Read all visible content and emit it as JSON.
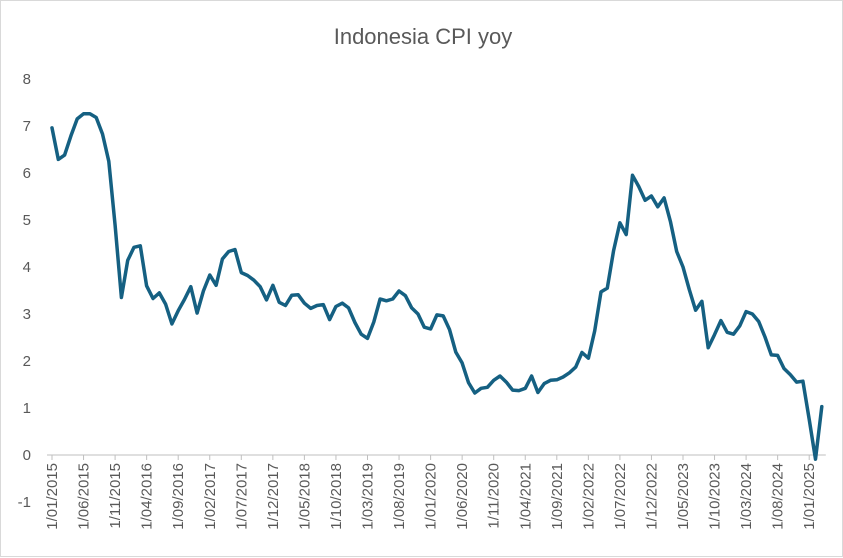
{
  "chart_data": {
    "type": "line",
    "title": "Indonesia CPI yoy",
    "xlabel": "",
    "ylabel": "",
    "ylim": [
      -1,
      8
    ],
    "yticks": [
      "-1",
      "0",
      "1",
      "2",
      "3",
      "4",
      "5",
      "6",
      "7",
      "8"
    ],
    "grid": false,
    "legend": "none",
    "color": "#156082",
    "x_tick_labels": [
      "1/01/2015",
      "1/06/2015",
      "1/11/2015",
      "1/04/2016",
      "1/09/2016",
      "1/02/2017",
      "1/07/2017",
      "1/12/2017",
      "1/05/2018",
      "1/10/2018",
      "1/03/2019",
      "1/08/2019",
      "1/01/2020",
      "1/06/2020",
      "1/11/2020",
      "1/04/2021",
      "1/09/2021",
      "1/02/2022",
      "1/07/2022",
      "1/12/2022",
      "1/05/2023",
      "1/10/2023",
      "1/03/2024",
      "1/08/2024",
      "1/01/2025"
    ],
    "series": [
      {
        "name": "Indonesia CPI yoy",
        "start": "1/01/2015",
        "frequency": "monthly",
        "values": [
          6.96,
          6.29,
          6.38,
          6.79,
          7.15,
          7.26,
          7.26,
          7.18,
          6.83,
          6.25,
          4.89,
          3.35,
          4.14,
          4.42,
          4.45,
          3.6,
          3.33,
          3.45,
          3.21,
          2.79,
          3.07,
          3.31,
          3.58,
          3.02,
          3.49,
          3.83,
          3.61,
          4.17,
          4.33,
          4.37,
          3.88,
          3.82,
          3.72,
          3.58,
          3.3,
          3.61,
          3.25,
          3.18,
          3.4,
          3.41,
          3.23,
          3.12,
          3.18,
          3.2,
          2.88,
          3.16,
          3.23,
          3.13,
          2.82,
          2.57,
          2.48,
          2.83,
          3.32,
          3.28,
          3.32,
          3.49,
          3.39,
          3.13,
          3.0,
          2.72,
          2.68,
          2.98,
          2.96,
          2.67,
          2.19,
          1.96,
          1.54,
          1.32,
          1.42,
          1.44,
          1.59,
          1.68,
          1.55,
          1.38,
          1.37,
          1.42,
          1.68,
          1.33,
          1.52,
          1.59,
          1.6,
          1.66,
          1.75,
          1.87,
          2.18,
          2.06,
          2.64,
          3.47,
          3.55,
          4.35,
          4.94,
          4.69,
          5.95,
          5.71,
          5.42,
          5.51,
          5.28,
          5.47,
          4.97,
          4.33,
          4.0,
          3.52,
          3.08,
          3.27,
          2.28,
          2.56,
          2.86,
          2.61,
          2.57,
          2.75,
          3.05,
          3.0,
          2.84,
          2.51,
          2.13,
          2.12,
          1.84,
          1.71,
          1.55,
          1.57,
          0.76,
          -0.09,
          1.03
        ]
      }
    ]
  }
}
